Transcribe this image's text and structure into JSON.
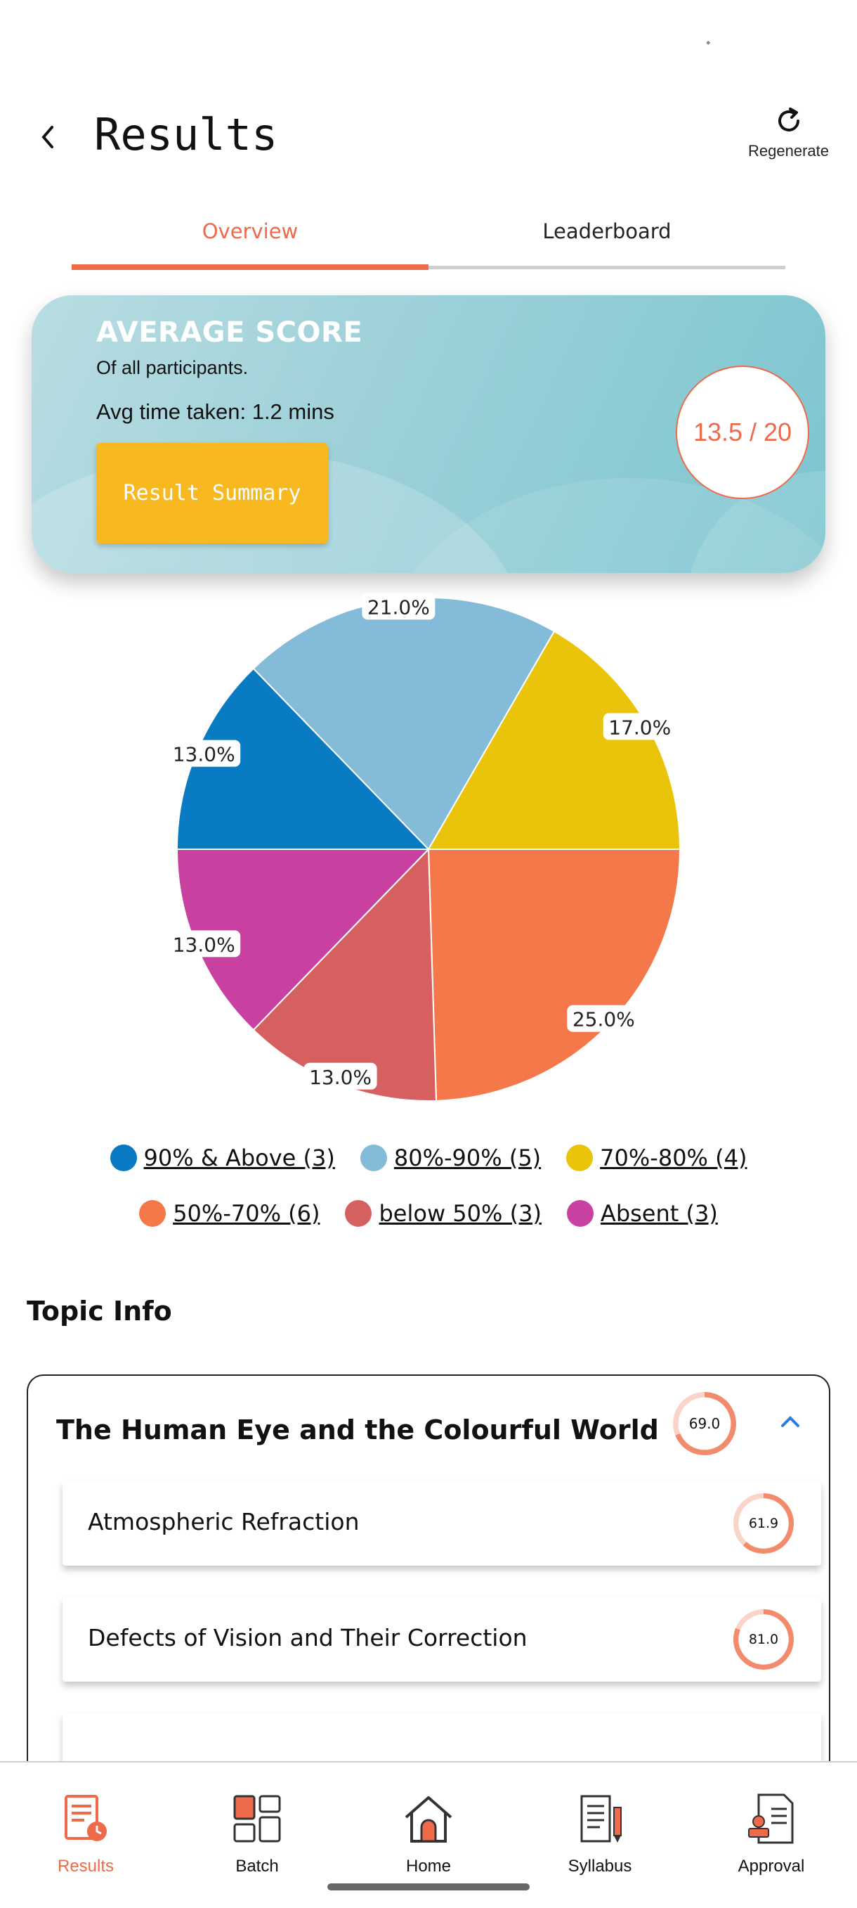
{
  "header": {
    "title": "Results",
    "regenerate_label": "Regenerate",
    "back_icon": "chevron-left-icon",
    "regenerate_icon": "refresh-icon"
  },
  "tabs": [
    {
      "label": "Overview",
      "active": true
    },
    {
      "label": "Leaderboard",
      "active": false
    }
  ],
  "score_card": {
    "title": "AVERAGE SCORE",
    "subtitle": "Of all participants.",
    "avg_time": "Avg time taken: 1.2 mins",
    "summary_button": "Result Summary",
    "score": "13.5 / 20"
  },
  "colors": {
    "accent": "#ee6a4a",
    "button_yellow": "#f8b820"
  },
  "chart_data": {
    "type": "pie",
    "slices": [
      {
        "label": "90% & Above (3)",
        "value": 13.0,
        "display": "13.0%",
        "color": "#087bc3"
      },
      {
        "label": "80%-90% (5)",
        "value": 21.0,
        "display": "21.0%",
        "color": "#84bbd9"
      },
      {
        "label": "70%-80% (4)",
        "value": 17.0,
        "display": "17.0%",
        "color": "#eac30b"
      },
      {
        "label": "50%-70% (6)",
        "value": 25.0,
        "display": "25.0%",
        "color": "#f4784a"
      },
      {
        "label": "below 50% (3)",
        "value": 13.0,
        "display": "13.0%",
        "color": "#d65f60"
      },
      {
        "label": "Absent (3)",
        "value": 13.0,
        "display": "13.0%",
        "color": "#c841a1"
      }
    ],
    "legend_position": "bottom"
  },
  "topic_info": {
    "heading": "Topic Info",
    "topic": {
      "title": "The Human Eye and the Colourful World",
      "score": "69.0",
      "score_fraction": 0.69,
      "expand_icon": "chevron-up-icon"
    },
    "subtopics": [
      {
        "label": "Atmospheric Refraction",
        "score": "61.9",
        "score_fraction": 0.619
      },
      {
        "label": "Defects of Vision and Their Correction",
        "score": "81.0",
        "score_fraction": 0.81
      },
      {
        "label": "",
        "score": "",
        "score_fraction": 0
      }
    ]
  },
  "bottom_nav": [
    {
      "label": "Results",
      "icon": "results-icon",
      "active": true
    },
    {
      "label": "Batch",
      "icon": "batch-icon",
      "active": false
    },
    {
      "label": "Home",
      "icon": "home-icon",
      "active": false
    },
    {
      "label": "Syllabus",
      "icon": "syllabus-icon",
      "active": false
    },
    {
      "label": "Approval",
      "icon": "approval-icon",
      "active": false
    }
  ]
}
